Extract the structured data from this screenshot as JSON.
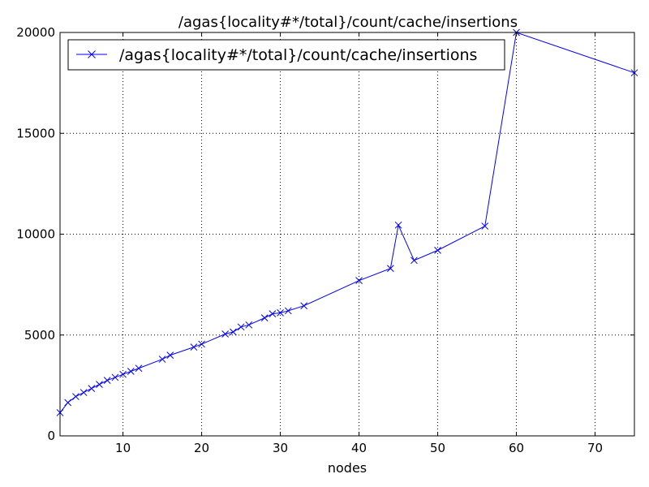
{
  "chart_data": {
    "type": "line",
    "title": "/agas{locality#*/total}/count/cache/insertions",
    "xlabel": "nodes",
    "ylabel": "",
    "xlim": [
      2,
      75
    ],
    "ylim": [
      0,
      20000
    ],
    "xticks": [
      10,
      20,
      30,
      40,
      50,
      60,
      70
    ],
    "yticks": [
      0,
      5000,
      10000,
      15000,
      20000
    ],
    "grid": true,
    "legend_position": "top-left",
    "series": [
      {
        "name": "/agas{locality#*/total}/count/cache/insertions",
        "color": "#0000ff",
        "marker": "x",
        "x": [
          2,
          3,
          4,
          5,
          6,
          7,
          8,
          9,
          10,
          11,
          12,
          15,
          16,
          19,
          20,
          23,
          24,
          25,
          26,
          28,
          29,
          30,
          31,
          33,
          40,
          44,
          45,
          47,
          50,
          56,
          60,
          75
        ],
        "y": [
          1150,
          1650,
          1950,
          2150,
          2350,
          2550,
          2750,
          2900,
          3050,
          3200,
          3350,
          3800,
          4000,
          4400,
          4550,
          5050,
          5150,
          5400,
          5500,
          5850,
          6050,
          6100,
          6200,
          6450,
          7700,
          8300,
          10450,
          8700,
          9200,
          10400,
          20000,
          18000
        ]
      }
    ]
  }
}
